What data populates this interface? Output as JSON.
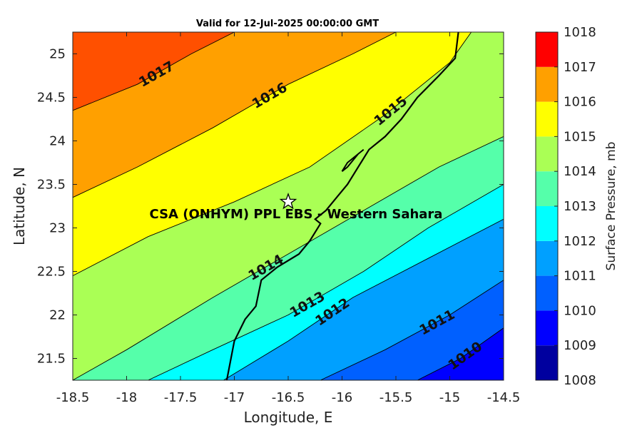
{
  "chart_data": {
    "type": "contour",
    "title": "Valid for 12-Jul-2025 00:00:00 GMT",
    "xlabel": "Longitude, E",
    "ylabel": "Latitude, N",
    "xlim": [
      -18.5,
      -14.5
    ],
    "ylim": [
      21.25,
      25.25
    ],
    "xticks": [
      "-18.5",
      "-18",
      "-17.5",
      "-17",
      "-16.5",
      "-16",
      "-15.5",
      "-15",
      "-14.5"
    ],
    "yticks": [
      "21.5",
      "22",
      "22.5",
      "23",
      "23.5",
      "24",
      "24.5",
      "25"
    ],
    "colorbar": {
      "label": "Surface Pressure, mb",
      "min": 1008,
      "max": 1018,
      "ticks": [
        "1008",
        "1009",
        "1010",
        "1011",
        "1012",
        "1013",
        "1014",
        "1015",
        "1016",
        "1017",
        "1018"
      ],
      "colors": [
        "#00009f",
        "#0000ff",
        "#0060ff",
        "#00a0ff",
        "#00ffff",
        "#55ffaa",
        "#aaff55",
        "#ffff00",
        "#ffa000",
        "#ff5000",
        "#ff0000"
      ]
    },
    "contour_levels": [
      {
        "level": 1010,
        "label": "1010",
        "points": [
          [
            -15.3,
            21.25
          ],
          [
            -14.9,
            21.5
          ],
          [
            -14.5,
            21.85
          ]
        ]
      },
      {
        "level": 1011,
        "label": "1011",
        "points": [
          [
            -16.2,
            21.25
          ],
          [
            -15.6,
            21.6
          ],
          [
            -15.0,
            22.0
          ],
          [
            -14.5,
            22.4
          ]
        ]
      },
      {
        "level": 1012,
        "label": "1012",
        "points": [
          [
            -17.1,
            21.25
          ],
          [
            -16.5,
            21.7
          ],
          [
            -15.9,
            22.2
          ],
          [
            -15.2,
            22.65
          ],
          [
            -14.5,
            23.1
          ]
        ]
      },
      {
        "level": 1013,
        "label": "1013",
        "points": [
          [
            -17.8,
            21.25
          ],
          [
            -17.2,
            21.6
          ],
          [
            -16.5,
            22.0
          ],
          [
            -15.8,
            22.5
          ],
          [
            -15.2,
            23.0
          ],
          [
            -14.5,
            23.5
          ]
        ]
      },
      {
        "level": 1014,
        "label": "1014",
        "points": [
          [
            -18.5,
            21.25
          ],
          [
            -18.0,
            21.6
          ],
          [
            -17.2,
            22.2
          ],
          [
            -16.5,
            22.7
          ],
          [
            -15.8,
            23.2
          ],
          [
            -15.1,
            23.7
          ],
          [
            -14.5,
            24.05
          ]
        ]
      },
      {
        "level": 1015,
        "label": "1015",
        "points": [
          [
            -18.5,
            22.45
          ],
          [
            -17.8,
            22.9
          ],
          [
            -17.0,
            23.3
          ],
          [
            -16.3,
            23.7
          ],
          [
            -15.6,
            24.3
          ],
          [
            -15.0,
            24.9
          ],
          [
            -14.8,
            25.25
          ]
        ]
      },
      {
        "level": 1016,
        "label": "1016",
        "points": [
          [
            -18.5,
            23.35
          ],
          [
            -17.9,
            23.7
          ],
          [
            -17.2,
            24.15
          ],
          [
            -16.5,
            24.65
          ],
          [
            -15.9,
            25.0
          ],
          [
            -15.5,
            25.25
          ]
        ]
      },
      {
        "level": 1017,
        "label": "1017",
        "points": [
          [
            -18.5,
            24.35
          ],
          [
            -17.9,
            24.65
          ],
          [
            -17.4,
            25.0
          ],
          [
            -17.0,
            25.25
          ]
        ]
      }
    ],
    "fill_bands": [
      {
        "range": "1009-1010",
        "color": "#0000ff"
      },
      {
        "range": "1010-1011",
        "color": "#0060ff"
      },
      {
        "range": "1011-1012",
        "color": "#00a0ff"
      },
      {
        "range": "1012-1013",
        "color": "#00ffff"
      },
      {
        "range": "1013-1014",
        "color": "#55ffaa"
      },
      {
        "range": "1014-1015",
        "color": "#aaff55"
      },
      {
        "range": "1015-1016",
        "color": "#ffff00"
      },
      {
        "range": "1016-1017",
        "color": "#ffa000"
      },
      {
        "range": "1017-1018",
        "color": "#ff5000"
      }
    ],
    "coastline": [
      [
        -17.07,
        21.25
      ],
      [
        -17.0,
        21.7
      ],
      [
        -16.9,
        21.95
      ],
      [
        -16.8,
        22.1
      ],
      [
        -16.75,
        22.4
      ],
      [
        -16.6,
        22.55
      ],
      [
        -16.4,
        22.7
      ],
      [
        -16.3,
        22.85
      ],
      [
        -16.25,
        22.95
      ],
      [
        -16.2,
        23.05
      ],
      [
        -16.25,
        23.1
      ],
      [
        -16.15,
        23.2
      ],
      [
        -16.05,
        23.35
      ],
      [
        -15.95,
        23.5
      ],
      [
        -15.85,
        23.7
      ],
      [
        -15.75,
        23.9
      ],
      [
        -15.6,
        24.05
      ],
      [
        -15.45,
        24.25
      ],
      [
        -15.3,
        24.5
      ],
      [
        -15.1,
        24.75
      ],
      [
        -14.95,
        24.95
      ],
      [
        -14.92,
        25.25
      ]
    ],
    "peninsula": [
      [
        -15.8,
        23.9
      ],
      [
        -15.95,
        23.75
      ],
      [
        -16.0,
        23.65
      ],
      [
        -15.95,
        23.7
      ],
      [
        -15.85,
        23.85
      ]
    ],
    "marker": {
      "lon": -16.5,
      "lat": 23.3,
      "symbol": "star"
    },
    "annotation": "CSA (ONHYM) PPL EBS - Western Sahara"
  }
}
